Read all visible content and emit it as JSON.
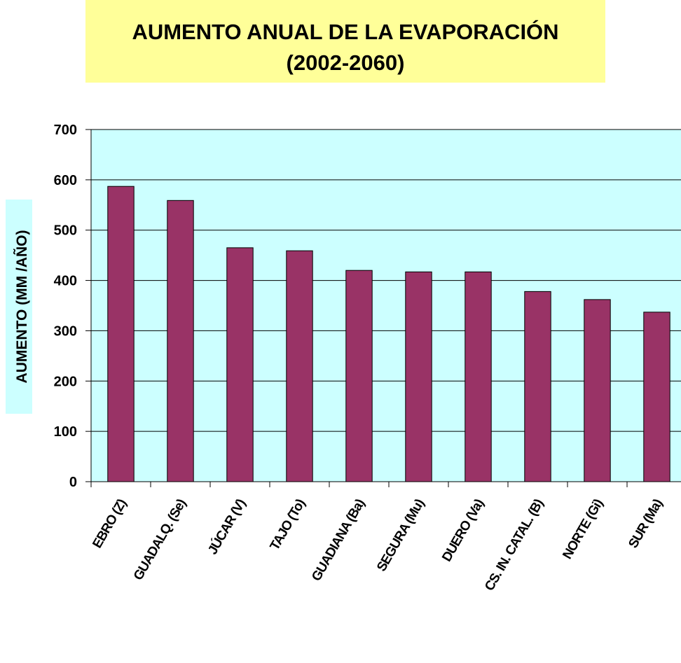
{
  "chart_data": {
    "type": "bar",
    "title": [
      "AUMENTO ANUAL DE LA EVAPORACIÓN",
      "(2002-2060)"
    ],
    "y_label": "AUMENTO (MM /AÑO)",
    "categories": [
      "EBRO (Z)",
      "GUADALQ. (Se)",
      "JÚCAR (V)",
      "TAJO (To)",
      "GUADIANA (Ba)",
      "SEGURA (Mu)",
      "DUERO (Va)",
      "CS. IN. CATAL. (B)",
      "NORTE (Gi)",
      "SUR (Ma)"
    ],
    "values": [
      587,
      559,
      465,
      459,
      420,
      417,
      417,
      378,
      362,
      337
    ],
    "color": "#993366",
    "ylim": [
      0,
      700
    ],
    "yticks": [
      0,
      100,
      200,
      300,
      400,
      500,
      600,
      700
    ],
    "grid": true
  }
}
